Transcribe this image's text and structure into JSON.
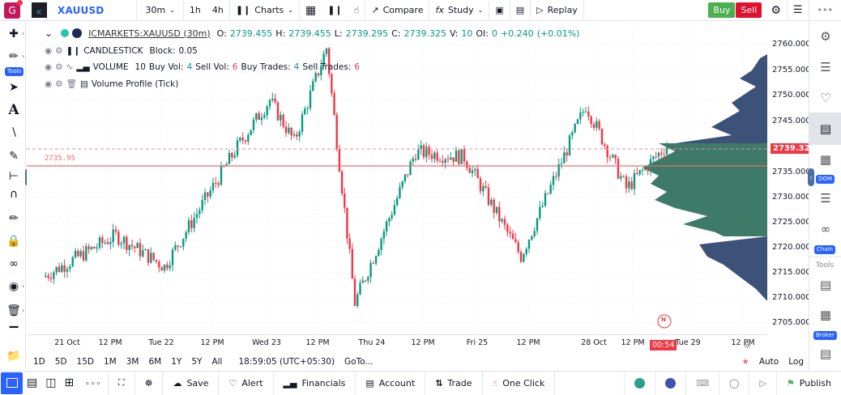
{
  "topbar": {
    "app_logo": "G",
    "broker_logo": "IC",
    "symbol": "XAUUSD",
    "interval": "30m",
    "intervals": [
      "1h",
      "4h"
    ],
    "charts_label": "Charts",
    "compare_label": "Compare",
    "study_label": "Study",
    "replay_label": "Replay",
    "buy_label": "Buy",
    "sell_label": "Sell"
  },
  "legend": {
    "symbol_full": "ICMARKETS:XAUUSD (30m)",
    "o_label": "O:",
    "o": "2739.455",
    "h_label": "H:",
    "h": "2739.455",
    "l_label": "L:",
    "l": "2739.295",
    "c_label": "C:",
    "c": "2739.325",
    "v_label": "V:",
    "v": "10",
    "oi_label": "OI:",
    "oi": "0",
    "change": "+0.240",
    "change_pct": "(+0.01%)",
    "indicators": [
      {
        "name": "CANDLESTICK",
        "detail_label": "Block:",
        "detail_value": "0.05"
      },
      {
        "name": "VOLUME",
        "value": "10",
        "buy_vol_label": "Buy Vol:",
        "buy_vol": "4",
        "sell_vol_label": "Sell Vol:",
        "sell_vol": "6",
        "buy_trades_label": "Buy Trades:",
        "buy_trades": "4",
        "sell_trades_label": "Sell Trades:",
        "sell_trades": "6"
      },
      {
        "name": "Volume Profile (Tick)"
      }
    ]
  },
  "chart": {
    "hline_label": "2735.95",
    "current_price": "2739.325",
    "countdown": "00:54",
    "news_marker": "N",
    "colors": {
      "up": "#089981",
      "down": "#f23645",
      "vp_value_area": "#3d7a68",
      "vp_outside": "#3c5278"
    }
  },
  "price_axis": [
    "2760.000",
    "2755.000",
    "2750.000",
    "2745.000",
    "2735.000",
    "2730.000",
    "2725.000",
    "2720.000",
    "2715.000",
    "2710.000",
    "2705.000"
  ],
  "time_axis": [
    "21 Oct",
    "12 PM",
    "Tue 22",
    "12 PM",
    "Wed 23",
    "12 PM",
    "Thu 24",
    "12 PM",
    "Fri 25",
    "12 PM",
    "28 Oct",
    "12 PM",
    "Tue 29",
    "12 PM"
  ],
  "range_bar": {
    "ranges": [
      "1D",
      "5D",
      "15D",
      "1M",
      "3M",
      "6M",
      "1Y",
      "5Y",
      "All"
    ],
    "clock": "18:59:05 (UTC+05:30)",
    "goto": "GoTo...",
    "auto": "Auto",
    "log": "Log"
  },
  "left_toolbar": {
    "tools_badge": "Tools"
  },
  "right_toolbar": {
    "dom_badge": "DOM",
    "chain_badge": "Chain",
    "tools_label": "Tools",
    "broker_badge": "Broker"
  },
  "bottombar": {
    "save": "Save",
    "alert": "Alert",
    "financials": "Financials",
    "account": "Account",
    "trade": "Trade",
    "one_click": "One Click",
    "publish": "Publish"
  },
  "chart_data": {
    "type": "candlestick",
    "title": "ICMARKETS:XAUUSD (30m)",
    "ylim": [
      2703,
      2763
    ],
    "horizontal_lines": [
      {
        "value": 2735.95,
        "style": "solid"
      },
      {
        "value": 2739.325,
        "style": "dashed"
      }
    ],
    "x_ticks": [
      "21 Oct",
      "12 PM",
      "Tue 22",
      "12 PM",
      "Wed 23",
      "12 PM",
      "Thu 24",
      "12 PM",
      "Fri 25",
      "12 PM",
      "28 Oct",
      "12 PM",
      "Tue 29",
      "12 PM"
    ],
    "approx_path": [
      {
        "x": "21 Oct",
        "close": 2714
      },
      {
        "x": "Tue 22 open",
        "close": 2722
      },
      {
        "x": "Tue 22",
        "close": 2716
      },
      {
        "x": "Tue 22 late",
        "close": 2739
      },
      {
        "x": "Wed 23",
        "close": 2748
      },
      {
        "x": "Wed 23 12PM",
        "close": 2740
      },
      {
        "x": "Wed 23 late",
        "close": 2758
      },
      {
        "x": "Thu 24",
        "close": 2709
      },
      {
        "x": "Thu 24 12PM",
        "close": 2738
      },
      {
        "x": "Fri 25",
        "close": 2737
      },
      {
        "x": "Fri 25 12PM",
        "close": 2718
      },
      {
        "x": "28 Oct",
        "close": 2747
      },
      {
        "x": "28 Oct 12PM",
        "close": 2731
      },
      {
        "x": "Tue 29",
        "close": 2739.325
      }
    ]
  }
}
